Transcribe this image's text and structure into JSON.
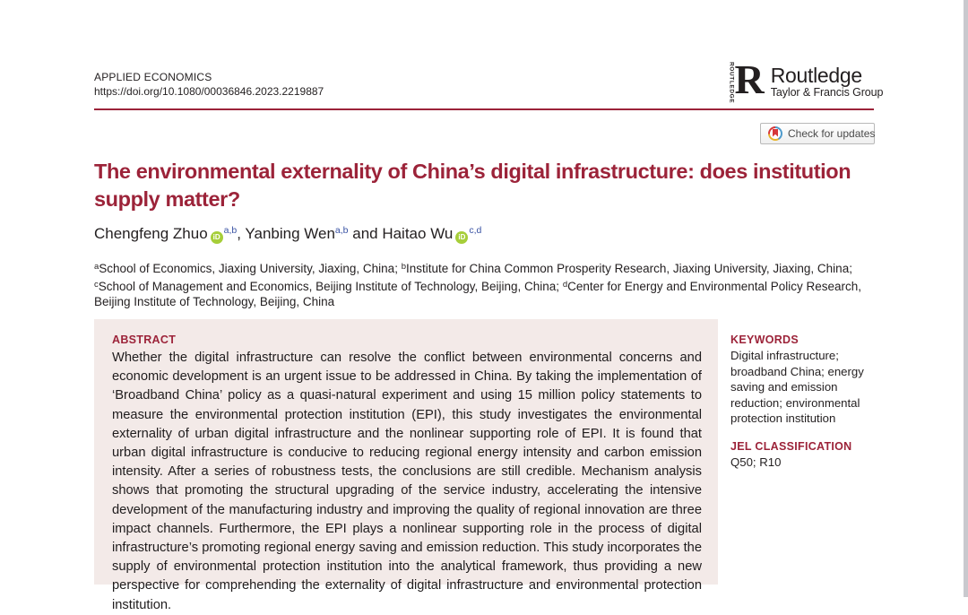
{
  "journal": {
    "name": "APPLIED ECONOMICS",
    "doi": "https://doi.org/10.1080/00036846.2023.2219887"
  },
  "publisher": {
    "vertical_mark": "ROUTLEDGE",
    "mark_letter": "R",
    "name": "Routledge",
    "tagline": "Taylor & Francis Group"
  },
  "updates_badge": {
    "label": "Check for updates"
  },
  "article": {
    "title": "The environmental externality of China’s digital infrastructure: does institution supply matter?",
    "orcid_label": "iD",
    "authors": [
      {
        "name": "Chengfeng Zhuo",
        "sup": "a,b",
        "sep_after": ", "
      },
      {
        "name": "Yanbing Wen",
        "sup": "a,b",
        "sep_after": " and "
      },
      {
        "name": "Haitao Wu",
        "sup": "c,d",
        "sep_after": ""
      }
    ],
    "affiliations": [
      {
        "sup": "a",
        "text": "School of Economics, Jiaxing University, Jiaxing, China; "
      },
      {
        "sup": "b",
        "text": "Institute for China Common Prosperity Research, Jiaxing University, Jiaxing, China; "
      },
      {
        "sup": "c",
        "text": "School of Management and Economics, Beijing Institute of Technology, Beijing, China; "
      },
      {
        "sup": "d",
        "text": "Center for Energy and Environmental Policy Research, Beijing Institute of Technology, Beijing, China"
      }
    ]
  },
  "abstract": {
    "heading": "ABSTRACT",
    "text": "Whether the digital infrastructure can resolve the conflict between environmental concerns and economic development is an urgent issue to be addressed in China. By taking the implementation of ‘Broadband China’ policy as a quasi-natural experiment and using 15 million policy statements to measure the environmental protection institution (EPI), this study investigates the environmental externality of urban digital infrastructure and the nonlinear supporting role of EPI. It is found that urban digital infrastructure is conducive to reducing regional energy intensity and carbon emission intensity. After a series of robustness tests, the conclusions are still credible. Mechanism analysis shows that promoting the structural upgrading of the service industry, accelerating the intensive development of the manufacturing industry and improving the quality of regional innovation are three impact channels. Furthermore, the EPI plays a nonlinear supporting role in the process of digital infrastructure’s promoting regional energy saving and emission reduction. This study incorporates the supply of environmental protection institution into the analytical framework, thus providing a new perspective for comprehending the externality of digital infrastructure and environmental protection institution."
  },
  "keywords": {
    "heading": "KEYWORDS",
    "text": "Digital infrastructure; broadband China; energy saving and emission reduction; environmental protection institution"
  },
  "jel": {
    "heading": "JEL CLASSIFICATION",
    "text": "Q50; R10"
  },
  "colors": {
    "maroon": "#9c2339",
    "orcid_green": "#a6ce39",
    "superscript_blue": "#3a53a4",
    "abstract_bg": "#f3eae8",
    "edge_strip": "#c9c9ce"
  }
}
